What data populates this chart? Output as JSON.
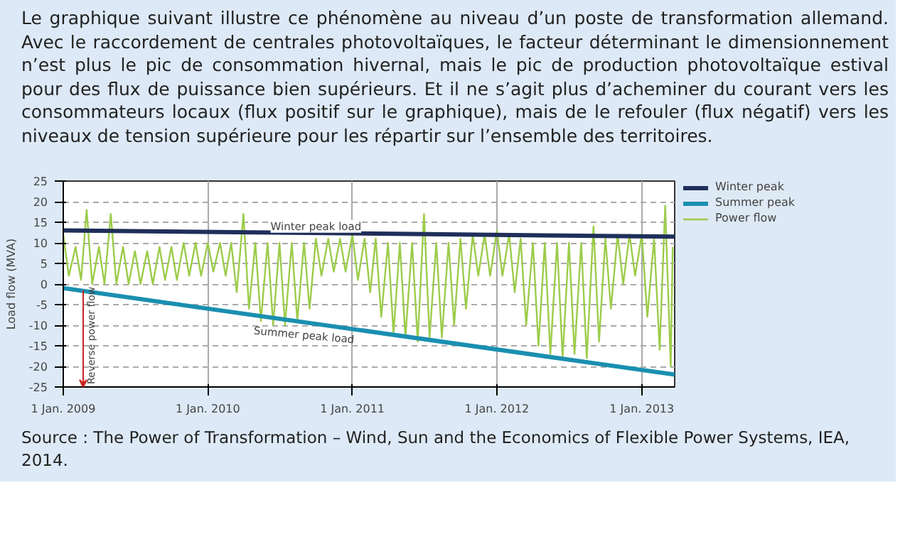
{
  "chart_data": {
    "type": "line",
    "subtitle": "Le graphique suivant illustre ce phénomène au niveau d’un poste de transformation allemand. Avec le raccordement de centrales photovoltaïques, le facteur déterminant le dimensionnement n’est plus le pic de consommation hivernal, mais le pic de production photovoltaïque estival pour des flux de puissance bien supérieurs. Et il ne s’agit plus d’acheminer du courant vers les consommateurs locaux (flux positif sur le graphique), mais de le refouler (flux négatif) vers les niveaux de tension supérieure pour les répartir sur l’ensemble des territoires.",
    "ylabel": "Load flow (MVA)",
    "xlim": [
      "2009-01-01",
      "2013-03-25"
    ],
    "xticks": [
      {
        "value": "2009-01-01",
        "label": "1 Jan. 2009"
      },
      {
        "value": "2010-01-01",
        "label": "1 Jan. 2010"
      },
      {
        "value": "2011-01-01",
        "label": "1 Jan. 2011"
      },
      {
        "value": "2012-01-01",
        "label": "1 Jan. 2012"
      },
      {
        "value": "2013-01-01",
        "label": "1 Jan. 2013"
      }
    ],
    "ylim": [
      -25,
      25
    ],
    "yticks": [
      -25,
      -20,
      -15,
      -10,
      -5,
      0,
      5,
      10,
      15,
      20,
      25
    ],
    "grid": true,
    "legend": "right",
    "line_style": "solid",
    "marker": "none",
    "series": [
      {
        "name": "Power flow",
        "color": "#9ccc4a",
        "x": [
          "2009-01-01",
          "2009-01-15",
          "2009-02-01",
          "2009-02-15",
          "2009-03-01",
          "2009-03-15",
          "2009-04-01",
          "2009-04-15",
          "2009-05-01",
          "2009-05-15",
          "2009-06-01",
          "2009-06-15",
          "2009-07-01",
          "2009-07-15",
          "2009-08-01",
          "2009-08-15",
          "2009-09-01",
          "2009-09-15",
          "2009-10-01",
          "2009-10-15",
          "2009-11-01",
          "2009-11-15",
          "2009-12-01",
          "2009-12-15",
          "2010-01-01",
          "2010-01-15",
          "2010-02-01",
          "2010-02-15",
          "2010-03-01",
          "2010-03-15",
          "2010-04-01",
          "2010-04-15",
          "2010-05-01",
          "2010-05-15",
          "2010-06-01",
          "2010-06-15",
          "2010-07-01",
          "2010-07-15",
          "2010-08-01",
          "2010-08-15",
          "2010-09-01",
          "2010-09-15",
          "2010-10-01",
          "2010-10-15",
          "2010-11-01",
          "2010-11-15",
          "2010-12-01",
          "2010-12-15",
          "2011-01-01",
          "2011-01-15",
          "2011-02-01",
          "2011-02-15",
          "2011-03-01",
          "2011-03-15",
          "2011-04-01",
          "2011-04-15",
          "2011-05-01",
          "2011-05-15",
          "2011-06-01",
          "2011-06-15",
          "2011-07-01",
          "2011-07-15",
          "2011-08-01",
          "2011-08-15",
          "2011-09-01",
          "2011-09-15",
          "2011-10-01",
          "2011-10-15",
          "2011-11-01",
          "2011-11-15",
          "2011-12-01",
          "2011-12-15",
          "2012-01-01",
          "2012-01-15",
          "2012-02-01",
          "2012-02-15",
          "2012-03-01",
          "2012-03-15",
          "2012-04-01",
          "2012-04-15",
          "2012-05-01",
          "2012-05-15",
          "2012-06-01",
          "2012-06-15",
          "2012-07-01",
          "2012-07-15",
          "2012-08-01",
          "2012-08-15",
          "2012-09-01",
          "2012-09-15",
          "2012-10-01",
          "2012-10-15",
          "2012-11-01",
          "2012-11-15",
          "2012-12-01",
          "2012-12-15",
          "2013-01-01",
          "2013-01-15",
          "2013-02-01",
          "2013-02-15",
          "2013-03-01",
          "2013-03-15",
          "2013-03-20"
        ],
        "values": [
          12,
          2,
          9,
          1,
          18,
          0,
          9,
          0,
          17,
          0,
          9,
          0,
          8,
          0,
          8,
          0,
          9,
          1,
          9,
          1,
          10,
          2,
          10,
          2,
          10,
          3,
          10,
          2,
          10,
          -2,
          17,
          -6,
          10,
          -9,
          10,
          -10,
          10,
          -10,
          10,
          -9,
          10,
          -6,
          11,
          2,
          11,
          3,
          11,
          3,
          12,
          1,
          11,
          -2,
          11,
          -8,
          10,
          -12,
          10,
          -13,
          10,
          -14,
          17,
          -13,
          10,
          -13,
          10,
          -10,
          11,
          -6,
          12,
          2,
          12,
          2,
          13,
          2,
          12,
          -2,
          11,
          -10,
          10,
          -15,
          10,
          -17,
          10,
          -18,
          10,
          -17,
          10,
          -18,
          14,
          -14,
          11,
          -6,
          12,
          0,
          12,
          2,
          12,
          -8,
          11,
          -16,
          19,
          -20,
          9
        ]
      },
      {
        "name": "Winter peak",
        "color": "#1f2f5a",
        "x": [
          "2009-01-01",
          "2013-03-25"
        ],
        "values": [
          13,
          11.5
        ]
      },
      {
        "name": "Summer peak",
        "color": "#1a8fb0",
        "x": [
          "2009-01-01",
          "2013-03-25"
        ],
        "values": [
          -1,
          -22
        ]
      }
    ],
    "annotations": [
      {
        "text": "Winter peak load",
        "x": "2010-10-01",
        "y": 14
      },
      {
        "text": "Summer peak load",
        "x": "2010-09-01",
        "y": -9.3
      },
      "Reverse power flow",
      "Source : The Power of Transformation – Wind, Sun and the Economics of Flexible Power Systems, IEA, 2014."
    ]
  }
}
